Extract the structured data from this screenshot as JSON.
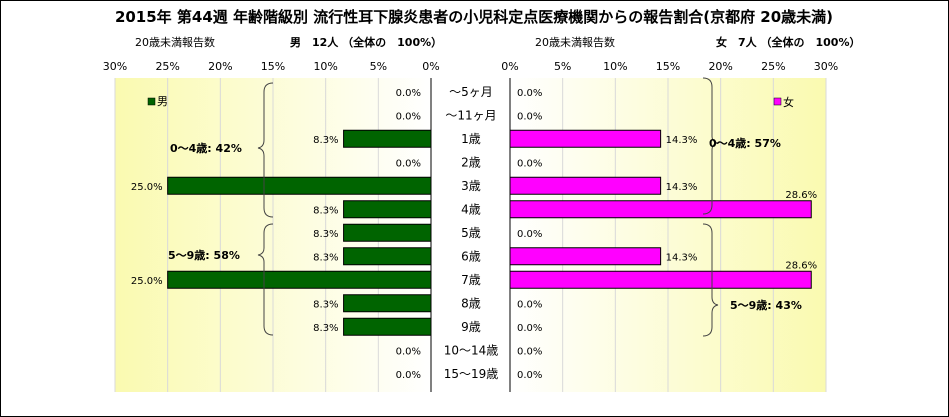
{
  "chart_data": {
    "type": "bar",
    "title": "2015年 第44週 年齢階級別 流行性耳下腺炎患者の小児科定点医療機関からの報告割合(京都府 20歳未満)",
    "categories": [
      "～5ヶ月",
      "～11ヶ月",
      "1歳",
      "2歳",
      "3歳",
      "4歳",
      "5歳",
      "6歳",
      "7歳",
      "8歳",
      "9歳",
      "10～14歳",
      "15～19歳"
    ],
    "left_panel": {
      "subtitle_left": "20歳未満報告数",
      "subtitle_right": "男　12人 （全体の　100%）",
      "legend": "男",
      "color": "#006400",
      "axis_ticks": [
        "30%",
        "25%",
        "20%",
        "15%",
        "10%",
        "5%",
        "0%"
      ],
      "xlim": [
        0,
        30
      ],
      "series": [
        {
          "name": "男",
          "values": [
            0.0,
            0.0,
            8.3,
            0.0,
            25.0,
            8.3,
            8.3,
            8.3,
            25.0,
            8.3,
            8.3,
            0.0,
            0.0
          ]
        }
      ],
      "labels": [
        "0.0%",
        "0.0%",
        "8.3%",
        "0.0%",
        "25.0%",
        "8.3%",
        "8.3%",
        "8.3%",
        "25.0%",
        "8.3%",
        "8.3%",
        "0.0%",
        "0.0%"
      ],
      "group_labels": [
        "0～4歳: 42%",
        "5～9歳: 58%"
      ]
    },
    "right_panel": {
      "subtitle_left": "20歳未満報告数",
      "subtitle_right": "女　7人 （全体の　100%）",
      "legend": "女",
      "color": "#ff00ff",
      "axis_ticks": [
        "0%",
        "5%",
        "10%",
        "15%",
        "20%",
        "25%",
        "30%"
      ],
      "xlim": [
        0,
        30
      ],
      "series": [
        {
          "name": "女",
          "values": [
            0.0,
            0.0,
            14.3,
            0.0,
            14.3,
            28.6,
            0.0,
            14.3,
            28.6,
            0.0,
            0.0,
            0.0,
            0.0
          ]
        }
      ],
      "labels": [
        "0.0%",
        "0.0%",
        "14.3%",
        "0.0%",
        "14.3%",
        "28.6%",
        "0.0%",
        "14.3%",
        "28.6%",
        "0.0%",
        "0.0%",
        "0.0%",
        "0.0%"
      ],
      "group_labels": [
        "0～4歳: 57%",
        "5～9歳: 43%"
      ]
    }
  }
}
